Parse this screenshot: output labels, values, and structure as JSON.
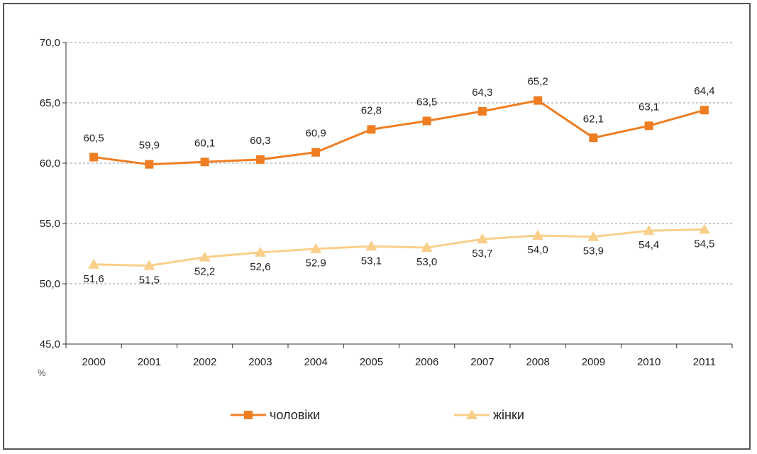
{
  "chart_data": {
    "type": "line",
    "categories": [
      "2000",
      "2001",
      "2002",
      "2003",
      "2004",
      "2005",
      "2006",
      "2007",
      "2008",
      "2009",
      "2010",
      "2011"
    ],
    "series": [
      {
        "name": "чоловіки",
        "color": "#ef7d22",
        "marker": "square",
        "values": [
          60.5,
          59.9,
          60.1,
          60.3,
          60.9,
          62.8,
          63.5,
          64.3,
          65.2,
          62.1,
          63.1,
          64.4
        ],
        "labels": [
          "60,5",
          "59,9",
          "60,1",
          "60,3",
          "60,9",
          "62,8",
          "63,5",
          "64,3",
          "65,2",
          "62,1",
          "63,1",
          "64,4"
        ]
      },
      {
        "name": "жінки",
        "color": "#f9cf8a",
        "marker": "triangle",
        "values": [
          51.6,
          51.5,
          52.2,
          52.6,
          52.9,
          53.1,
          53.0,
          53.7,
          54.0,
          53.9,
          54.4,
          54.5
        ],
        "labels": [
          "51,6",
          "51,5",
          "52,2",
          "52,6",
          "52,9",
          "53,1",
          "53,0",
          "53,7",
          "54,0",
          "53,9",
          "54,4",
          "54,5"
        ]
      }
    ],
    "yticks": [
      45,
      50,
      55,
      60,
      65,
      70
    ],
    "ytick_labels": [
      "45,0",
      "50,0",
      "55,0",
      "60,0",
      "65,0",
      "70,0"
    ],
    "ylim": [
      45,
      70
    ],
    "ylabel": "%",
    "xlabel": "",
    "title": "",
    "grid": "horizontal dashed",
    "legend_position": "bottom"
  }
}
